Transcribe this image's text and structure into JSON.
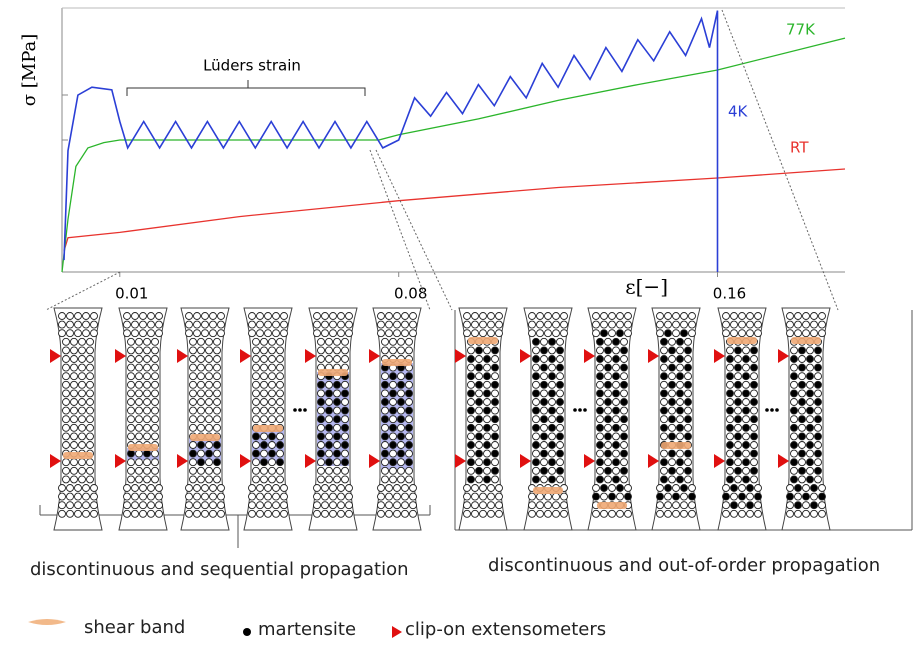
{
  "chart_data": {
    "type": "line",
    "ylabel": "σ [MPa]",
    "xlabel": "ε[−]",
    "xlim": [
      -0.0045,
      0.192
    ],
    "ylim": [
      0,
      100
    ],
    "xticks": [
      0.01,
      0.08,
      0.16
    ],
    "annotation": "Lüders strain",
    "series": [
      {
        "name": "RT",
        "color": "#e8332e",
        "x": [
          -0.004,
          -0.003,
          0.01,
          0.04,
          0.08,
          0.12,
          0.16,
          0.192
        ],
        "values": [
          8,
          13,
          15,
          21,
          27,
          32,
          35.6,
          39
        ]
      },
      {
        "name": "77K",
        "color": "#2bb52b",
        "x": [
          -0.0045,
          -0.003,
          -0.001,
          0.002,
          0.006,
          0.01,
          0.04,
          0.075,
          0.08,
          0.1,
          0.12,
          0.14,
          0.16,
          0.192
        ],
        "values": [
          0,
          20,
          40,
          47,
          49,
          50,
          50,
          50,
          52,
          58,
          65,
          71,
          76.5,
          88.6
        ]
      },
      {
        "name": "4K",
        "color": "#2b3fd6",
        "x": [
          -0.004,
          -0.003,
          -0.0005,
          0.003,
          0.008,
          0.01,
          0.012,
          0.016,
          0.02,
          0.024,
          0.028,
          0.032,
          0.036,
          0.04,
          0.044,
          0.048,
          0.052,
          0.056,
          0.06,
          0.064,
          0.068,
          0.072,
          0.076,
          0.08,
          0.084,
          0.088,
          0.092,
          0.096,
          0.1,
          0.104,
          0.108,
          0.112,
          0.116,
          0.12,
          0.124,
          0.128,
          0.132,
          0.136,
          0.14,
          0.144,
          0.148,
          0.152,
          0.156,
          0.158,
          0.16,
          0.16
        ],
        "values": [
          4.5,
          46,
          67,
          70,
          69,
          57,
          47,
          57,
          47,
          57,
          47,
          57,
          47,
          57,
          47,
          57,
          47,
          57,
          47,
          57,
          47,
          57,
          47,
          50,
          66,
          59,
          68,
          60,
          71,
          63,
          74,
          66,
          79,
          70,
          82,
          73,
          85,
          76,
          88,
          80,
          91,
          82,
          96,
          85,
          99,
          0
        ]
      }
    ]
  },
  "diagram": {
    "captions": [
      "discontinuous and sequential propagation",
      "discontinuous and out-of-order propagation"
    ],
    "legend": [
      {
        "label": "shear band"
      },
      {
        "label": "martensite"
      },
      {
        "label": "clip-on extensometers"
      }
    ]
  }
}
